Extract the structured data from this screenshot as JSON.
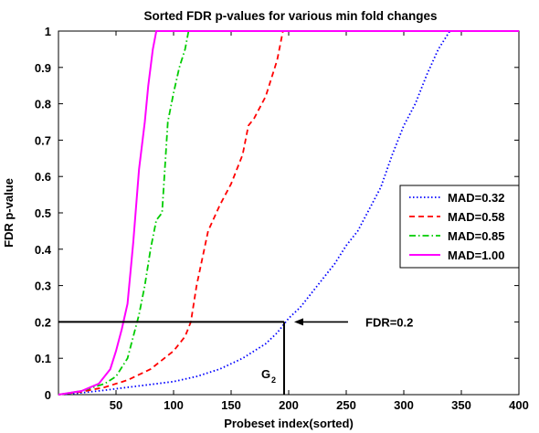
{
  "chart_data": {
    "type": "line",
    "title": "Sorted FDR p-values for various min fold changes",
    "xlabel": "Probeset index(sorted)",
    "ylabel": "FDR p-value",
    "xlim": [
      0,
      400
    ],
    "ylim": [
      0,
      1
    ],
    "xticks": [
      50,
      100,
      150,
      200,
      250,
      300,
      350,
      400
    ],
    "yticks": [
      0,
      0.1,
      0.2,
      0.3,
      0.4,
      0.5,
      0.6,
      0.7,
      0.8,
      0.9,
      1
    ],
    "grid": false,
    "legend_position": "right",
    "series": [
      {
        "name": "MAD=0.32",
        "color": "#0000ff",
        "style": "dotted",
        "x": [
          0,
          20,
          40,
          60,
          80,
          100,
          120,
          140,
          160,
          180,
          190,
          200,
          210,
          220,
          230,
          240,
          250,
          260,
          270,
          280,
          290,
          300,
          310,
          320,
          330,
          340,
          400
        ],
        "y": [
          0,
          0.005,
          0.012,
          0.02,
          0.028,
          0.036,
          0.05,
          0.07,
          0.1,
          0.14,
          0.17,
          0.21,
          0.24,
          0.28,
          0.32,
          0.36,
          0.41,
          0.45,
          0.51,
          0.57,
          0.66,
          0.74,
          0.8,
          0.88,
          0.95,
          1,
          1
        ]
      },
      {
        "name": "MAD=0.58",
        "color": "#ff0000",
        "style": "dashed",
        "x": [
          0,
          20,
          40,
          60,
          80,
          100,
          110,
          115,
          120,
          130,
          140,
          150,
          160,
          165,
          170,
          180,
          190,
          195,
          400
        ],
        "y": [
          0,
          0.008,
          0.02,
          0.04,
          0.07,
          0.12,
          0.16,
          0.2,
          0.3,
          0.45,
          0.52,
          0.58,
          0.66,
          0.74,
          0.76,
          0.82,
          0.92,
          1,
          1
        ]
      },
      {
        "name": "MAD=0.85",
        "color": "#00cc00",
        "style": "dashdot",
        "x": [
          0,
          20,
          40,
          50,
          60,
          65,
          70,
          75,
          80,
          85,
          90,
          95,
          100,
          105,
          110,
          113,
          400
        ],
        "y": [
          0,
          0.01,
          0.03,
          0.05,
          0.1,
          0.16,
          0.22,
          0.3,
          0.4,
          0.48,
          0.5,
          0.75,
          0.83,
          0.9,
          0.95,
          1,
          1
        ]
      },
      {
        "name": "MAD=1.00",
        "color": "#ff00ff",
        "style": "solid",
        "x": [
          0,
          20,
          35,
          45,
          50,
          55,
          60,
          65,
          70,
          75,
          78,
          82,
          85,
          400
        ],
        "y": [
          0,
          0.01,
          0.03,
          0.07,
          0.12,
          0.18,
          0.25,
          0.42,
          0.62,
          0.75,
          0.85,
          0.95,
          1,
          1
        ]
      }
    ],
    "annotations": {
      "fdr_label": "FDR=0.2",
      "g_label": "G",
      "g_subscript": "2",
      "threshold_y": 0.2,
      "threshold_x": 196
    }
  }
}
